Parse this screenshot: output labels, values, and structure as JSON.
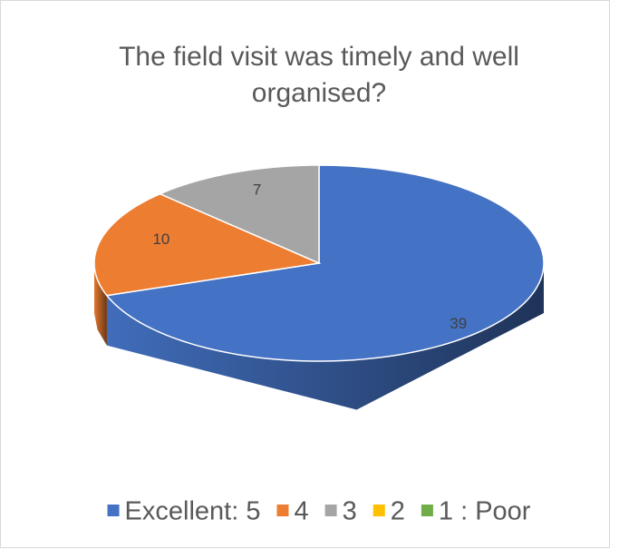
{
  "chart_data": {
    "type": "pie",
    "title": "The field visit was timely and well organised?",
    "categories": [
      "Excellent: 5",
      "4",
      "3",
      "2",
      "1 : Poor"
    ],
    "values": [
      39,
      10,
      7,
      0,
      0
    ],
    "colors": [
      "#4472c4",
      "#ed7d31",
      "#a5a5a5",
      "#ffc000",
      "#70ad47"
    ],
    "legend": "bottom"
  }
}
